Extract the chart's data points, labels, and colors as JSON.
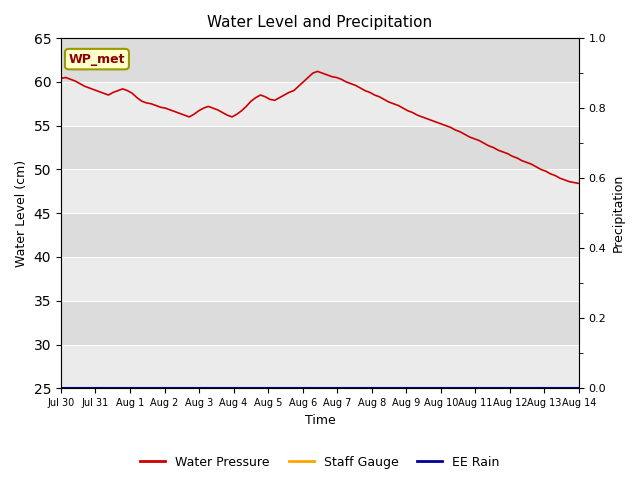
{
  "title": "Water Level and Precipitation",
  "xlabel": "Time",
  "ylabel_left": "Water Level (cm)",
  "ylabel_right": "Precipitation",
  "annotation_text": "WP_met",
  "annotation_color": "#8B0000",
  "annotation_bg": "#FFFFCC",
  "annotation_border": "#999900",
  "ylim_left": [
    25,
    65
  ],
  "ylim_right": [
    0.0,
    1.0
  ],
  "yticks_left": [
    25,
    30,
    35,
    40,
    45,
    50,
    55,
    60,
    65
  ],
  "yticks_right": [
    0.0,
    0.2,
    0.4,
    0.6,
    0.8,
    1.0
  ],
  "xtick_labels": [
    "Jul 30",
    "Jul 31",
    "Aug 1",
    "Aug 2",
    "Aug 3",
    "Aug 4",
    "Aug 5",
    "Aug 6",
    "Aug 7",
    "Aug 8",
    "Aug 9",
    "Aug 10",
    "Aug 11",
    "Aug 12",
    "Aug 13",
    "Aug 14"
  ],
  "bg_color_light": "#EBEBEB",
  "bg_color_dark": "#DCDCDC",
  "line_color_wp": "#CC0000",
  "line_color_sg": "#FFA500",
  "line_color_rain": "#000099",
  "legend_labels": [
    "Water Pressure",
    "Staff Gauge",
    "EE Rain"
  ],
  "water_pressure": [
    60.4,
    60.5,
    60.3,
    60.1,
    59.8,
    59.5,
    59.3,
    59.1,
    58.9,
    58.7,
    58.5,
    58.8,
    59.0,
    59.2,
    59.0,
    58.7,
    58.2,
    57.8,
    57.6,
    57.5,
    57.3,
    57.1,
    57.0,
    56.8,
    56.6,
    56.4,
    56.2,
    56.0,
    56.3,
    56.7,
    57.0,
    57.2,
    57.0,
    56.8,
    56.5,
    56.2,
    56.0,
    56.3,
    56.7,
    57.2,
    57.8,
    58.2,
    58.5,
    58.3,
    58.0,
    57.9,
    58.2,
    58.5,
    58.8,
    59.0,
    59.5,
    60.0,
    60.5,
    61.0,
    61.2,
    61.0,
    60.8,
    60.6,
    60.5,
    60.3,
    60.0,
    59.8,
    59.6,
    59.3,
    59.0,
    58.8,
    58.5,
    58.3,
    58.0,
    57.7,
    57.5,
    57.3,
    57.0,
    56.7,
    56.5,
    56.2,
    56.0,
    55.8,
    55.6,
    55.4,
    55.2,
    55.0,
    54.8,
    54.5,
    54.3,
    54.0,
    53.7,
    53.5,
    53.3,
    53.0,
    52.7,
    52.5,
    52.2,
    52.0,
    51.8,
    51.5,
    51.3,
    51.0,
    50.8,
    50.6,
    50.3,
    50.0,
    49.8,
    49.5,
    49.3,
    49.0,
    48.8,
    48.6,
    48.5,
    48.4
  ],
  "n_days": 15
}
